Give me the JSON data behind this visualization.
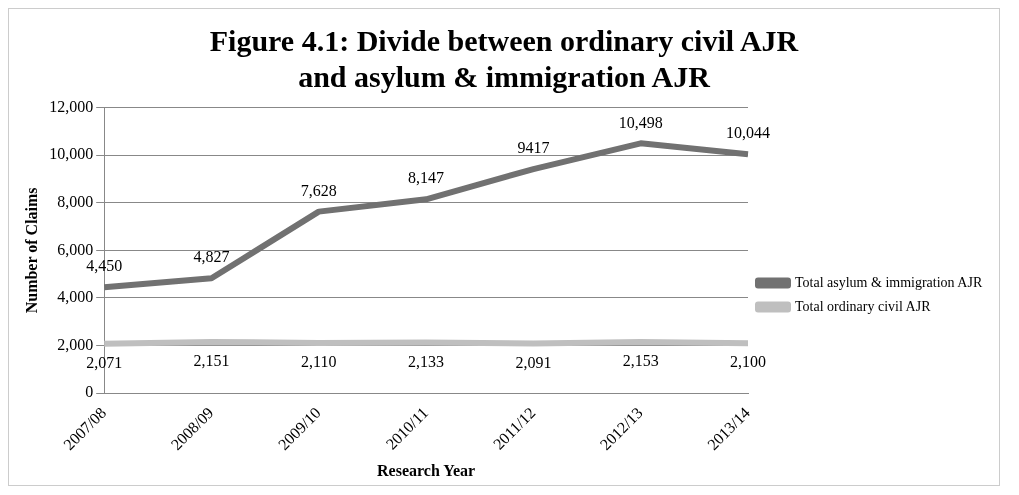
{
  "chart_data": {
    "type": "line",
    "title": "Figure 4.1: Divide between ordinary civil AJR and asylum & immigration AJR",
    "xlabel": "Research Year",
    "ylabel": "Number of Claims",
    "categories": [
      "2007/08",
      "2008/09",
      "2009/10",
      "2010/11",
      "2011/12",
      "2012/13",
      "2013/14"
    ],
    "series": [
      {
        "name": "Total asylum & immigration AJR",
        "color": "#717171",
        "values": [
          4450,
          4827,
          7628,
          8147,
          9417,
          10498,
          10044
        ],
        "value_labels": [
          "4,450",
          "4,827",
          "7,628",
          "8,147",
          "9417",
          "10,498",
          "10,044"
        ]
      },
      {
        "name": "Total ordinary civil AJR",
        "color": "#bfbfbf",
        "values": [
          2071,
          2151,
          2110,
          2133,
          2091,
          2153,
          2100
        ],
        "value_labels": [
          "2,071",
          "2,151",
          "2,110",
          "2,133",
          "2,091",
          "2,153",
          "2,100"
        ]
      }
    ],
    "ylim": [
      0,
      12000
    ],
    "yticks": [
      {
        "value": 0,
        "label": "0"
      },
      {
        "value": 2000,
        "label": "2,000"
      },
      {
        "value": 4000,
        "label": "4,000"
      },
      {
        "value": 6000,
        "label": "6,000"
      },
      {
        "value": 8000,
        "label": "8,000"
      },
      {
        "value": 10000,
        "label": "10,000"
      },
      {
        "value": 12000,
        "label": "12,000"
      }
    ],
    "grid": "y",
    "legend": "right",
    "marker": "none",
    "line_style": "solid"
  }
}
